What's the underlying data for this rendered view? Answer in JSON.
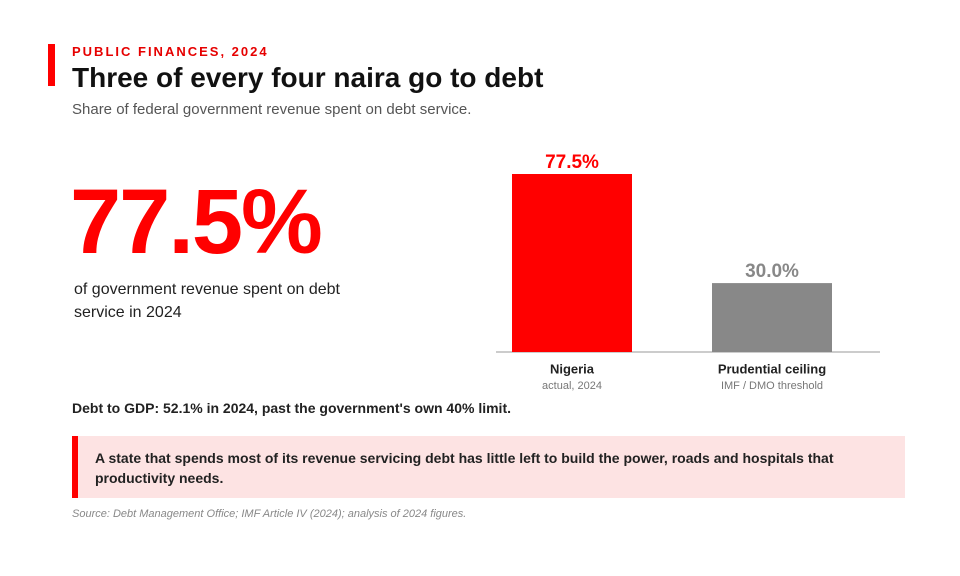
{
  "header": {
    "kicker": "PUBLIC FINANCES, 2024",
    "title": "Three of every four naira go to debt",
    "subtitle": "Share of federal government revenue spent on debt service."
  },
  "highlight": {
    "stat": "77.5%",
    "caption": "of government revenue spent on debt service in 2024"
  },
  "chart_data": {
    "type": "bar",
    "categories": [
      "Nigeria",
      "Prudential ceiling"
    ],
    "sublabels": [
      "actual, 2024",
      "IMF / DMO threshold"
    ],
    "values": [
      77.5,
      30.0
    ],
    "value_labels": [
      "77.5%",
      "30.0%"
    ],
    "colors": [
      "#ff0000",
      "#888888"
    ]
  },
  "note": "Debt to GDP: 52.1% in 2024, past the government's own 40% limit.",
  "callout": "A state that spends most of its revenue servicing debt has little left to build the power, roads and hospitals that productivity needs.",
  "source": "Source: Debt Management Office; IMF Article IV (2024); analysis of 2024 figures."
}
